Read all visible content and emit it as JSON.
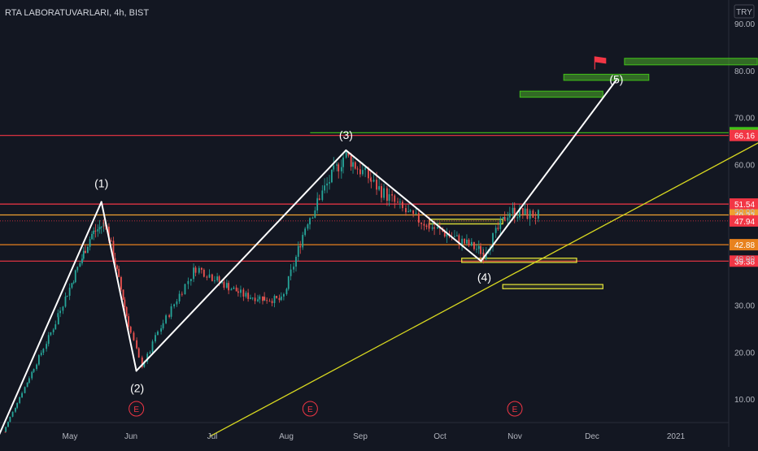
{
  "symbol": {
    "title": "RTA LABORATUVARLARI, 4h, BIST",
    "currency_button": "TRY"
  },
  "colors": {
    "background": "#131722",
    "axis_text": "#b2b5be",
    "up_candle": "#26a69a",
    "down_candle": "#ef5350",
    "wave_line": "#ffffff",
    "trend_line": "#d8d820",
    "green_box": "#41c318",
    "yellow_box": "#e8e83a"
  },
  "chart_data": {
    "type": "line",
    "title": "RTA LABORATUVARLARI, 4h, BIST",
    "xlabel": "",
    "ylabel": "",
    "x_ticks": [
      "May",
      "Jun",
      "Jul",
      "Aug",
      "Sep",
      "Oct",
      "Nov",
      "Dec",
      "2021"
    ],
    "y_ticks": [
      10,
      20,
      30,
      40,
      50,
      60,
      70,
      80,
      90
    ],
    "ylim": [
      2,
      92
    ],
    "grid": false,
    "elliott_waves": [
      {
        "label": "",
        "x": "2020-04-01",
        "y": 2
      },
      {
        "label": "(1)",
        "x": "2020-05-17",
        "y": 52
      },
      {
        "label": "(2)",
        "x": "2020-06-03",
        "y": 16
      },
      {
        "label": "(3)",
        "x": "2020-08-26",
        "y": 63
      },
      {
        "label": "(4)",
        "x": "2020-10-18",
        "y": 39.4
      },
      {
        "label": "(5)",
        "x": "2020-12-10",
        "y": 78
      }
    ],
    "horizontal_levels": [
      {
        "value": 66.74,
        "label": "66.74",
        "color": "#41c318"
      },
      {
        "value": 66.16,
        "label": "66.16",
        "color": "#f23645"
      },
      {
        "value": 51.54,
        "label": "51.54",
        "color": "#f23645"
      },
      {
        "value": 49.22,
        "label": "49.22",
        "color": "#f0a030"
      },
      {
        "value": 47.94,
        "label": "47.94",
        "color": "#f23645"
      },
      {
        "value": 42.88,
        "label": "42.88",
        "color": "#e8821e"
      },
      {
        "value": 39.38,
        "label": "39.38",
        "color": "#f23645"
      }
    ],
    "target_zones": [
      {
        "x_from": "2020-11-03",
        "x_to": "2020-12-05",
        "y_from": 74.3,
        "y_to": 75.6
      },
      {
        "x_from": "2020-11-20",
        "x_to": "2020-12-22",
        "y_from": 77.9,
        "y_to": 79.2
      },
      {
        "x_from": "2020-12-13",
        "x_to": "2021-02-03",
        "y_from": 81.2,
        "y_to": 82.6
      }
    ],
    "support_zones": [
      {
        "x_from": "2020-09-27",
        "x_to": "2020-10-27",
        "y_from": 47.3,
        "y_to": 48.3
      },
      {
        "x_from": "2020-10-10",
        "x_to": "2020-11-25",
        "y_from": 39.1,
        "y_to": 40.0
      },
      {
        "x_from": "2020-10-27",
        "x_to": "2020-12-05",
        "y_from": 33.5,
        "y_to": 34.4
      }
    ],
    "trendline": {
      "from": {
        "x": "2020-06-30",
        "y": 2
      },
      "to": {
        "x": "2021-02-28",
        "y": 71.5
      }
    },
    "earnings_markers": [
      {
        "label": "E",
        "x": "2020-06-03"
      },
      {
        "label": "E",
        "x": "2020-08-11"
      },
      {
        "label": "E",
        "x": "2020-11-01"
      }
    ],
    "flag_marker": {
      "x": "2020-12-02",
      "y": 83
    }
  }
}
